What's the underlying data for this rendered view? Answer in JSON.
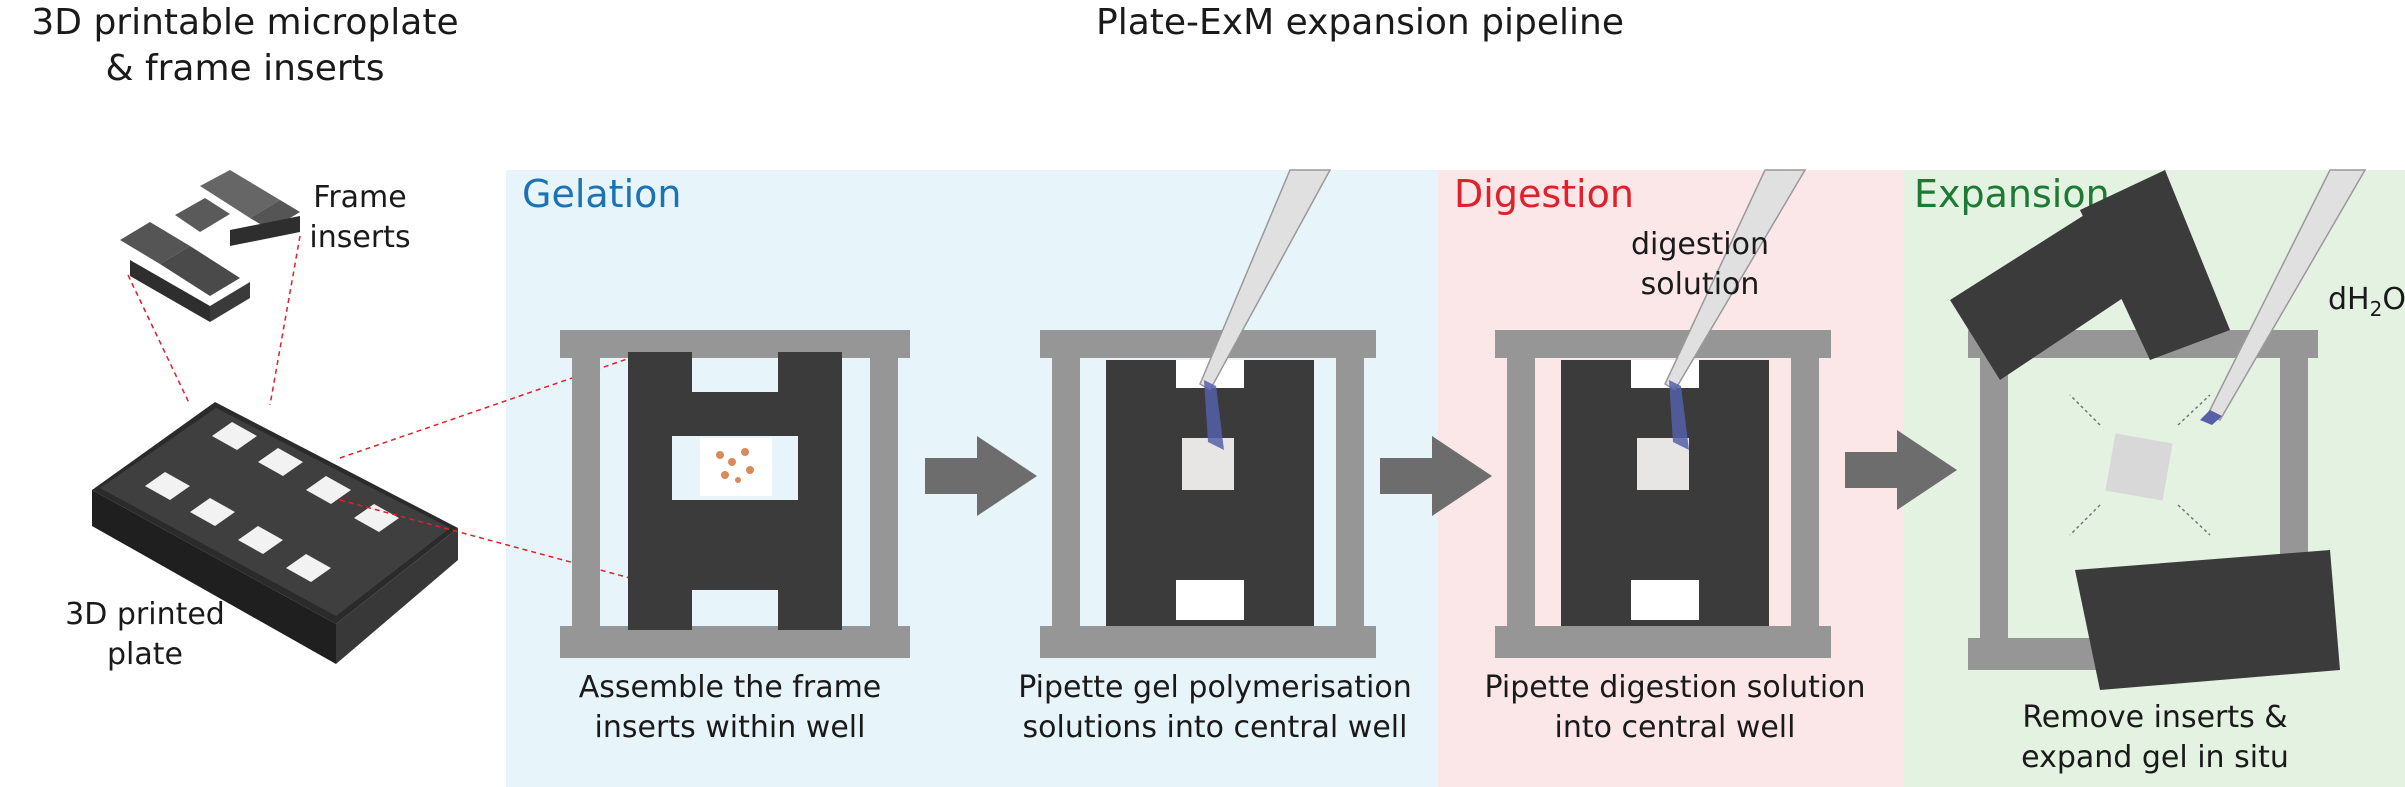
{
  "titles": {
    "left_line1": "3D printable microplate",
    "left_line2": "& frame inserts",
    "pipeline": "Plate-ExM expansion pipeline"
  },
  "labels": {
    "frame_line1": "Frame",
    "frame_line2": "inserts",
    "plate_line1": "3D printed",
    "plate_line2": "plate",
    "digestion_sol_line1": "digestion",
    "digestion_sol_line2": "solution",
    "dh2o_main": "dH",
    "dh2o_sub": "2",
    "dh2o_end": "O"
  },
  "panels": {
    "gelation": {
      "title": "Gelation",
      "color": "#1a73b5",
      "bg": "#e7f4fa"
    },
    "digestion": {
      "title": "Digestion",
      "color": "#e0202a",
      "bg": "#fbe6e8"
    },
    "expansion": {
      "title": "Expansion",
      "color": "#1d7a34",
      "bg": "#e3f2e1"
    }
  },
  "captions": {
    "step1_line1": "Assemble the frame",
    "step1_line2": "inserts within well",
    "step2_line1": "Pipette gel polymerisation",
    "step2_line2": "solutions into central well",
    "step3_line1": "Pipette digestion solution",
    "step3_line2": "into central well",
    "step4_line1": "Remove inserts &",
    "step4_line2": "expand gel in situ"
  },
  "colors": {
    "well_gray": "#969696",
    "insert_dark": "#3b3b3b",
    "arrow_gray": "#6d6d6d",
    "guide_red": "#e0202a"
  }
}
